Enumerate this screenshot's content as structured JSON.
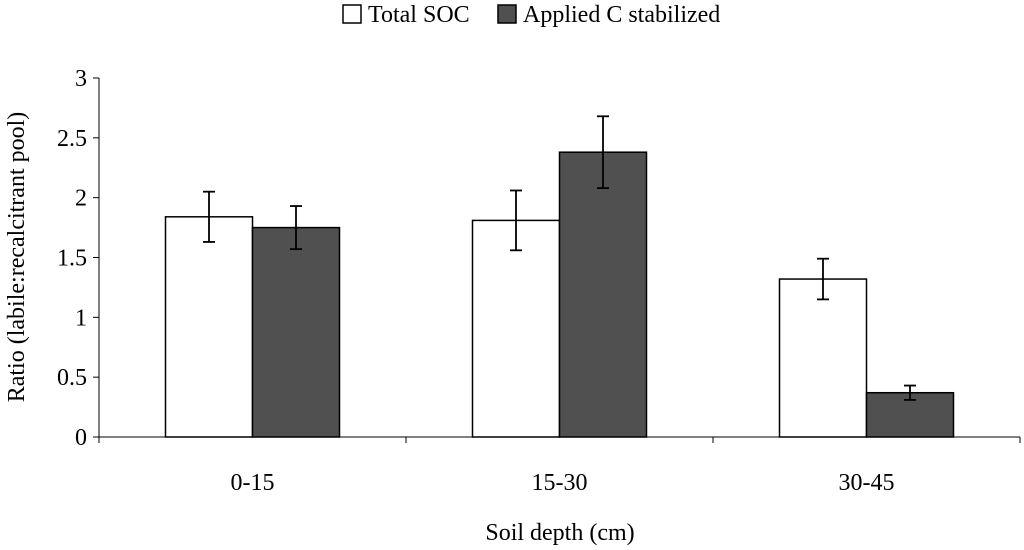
{
  "chart_data": {
    "type": "bar",
    "title": "",
    "xlabel": "Soil depth (cm)",
    "ylabel": "Ratio (labile:recalcitrant pool)",
    "ylim": [
      0,
      3
    ],
    "yticks": [
      0,
      0.5,
      1,
      1.5,
      2,
      2.5,
      3
    ],
    "ytick_labels": [
      "0",
      "0.5",
      "1",
      "1.5",
      "2",
      "2.5",
      "3"
    ],
    "categories": [
      "0-15",
      "15-30",
      "30-45"
    ],
    "legend_position": "top-center",
    "grid": false,
    "series": [
      {
        "name": "Total SOC",
        "color": "#ffffff",
        "values": [
          1.84,
          1.81,
          1.32
        ],
        "errors": [
          0.21,
          0.25,
          0.17
        ]
      },
      {
        "name": "Applied C stabilized",
        "color": "#505050",
        "values": [
          1.75,
          2.38,
          0.37
        ],
        "errors": [
          0.18,
          0.3,
          0.06
        ]
      }
    ]
  }
}
